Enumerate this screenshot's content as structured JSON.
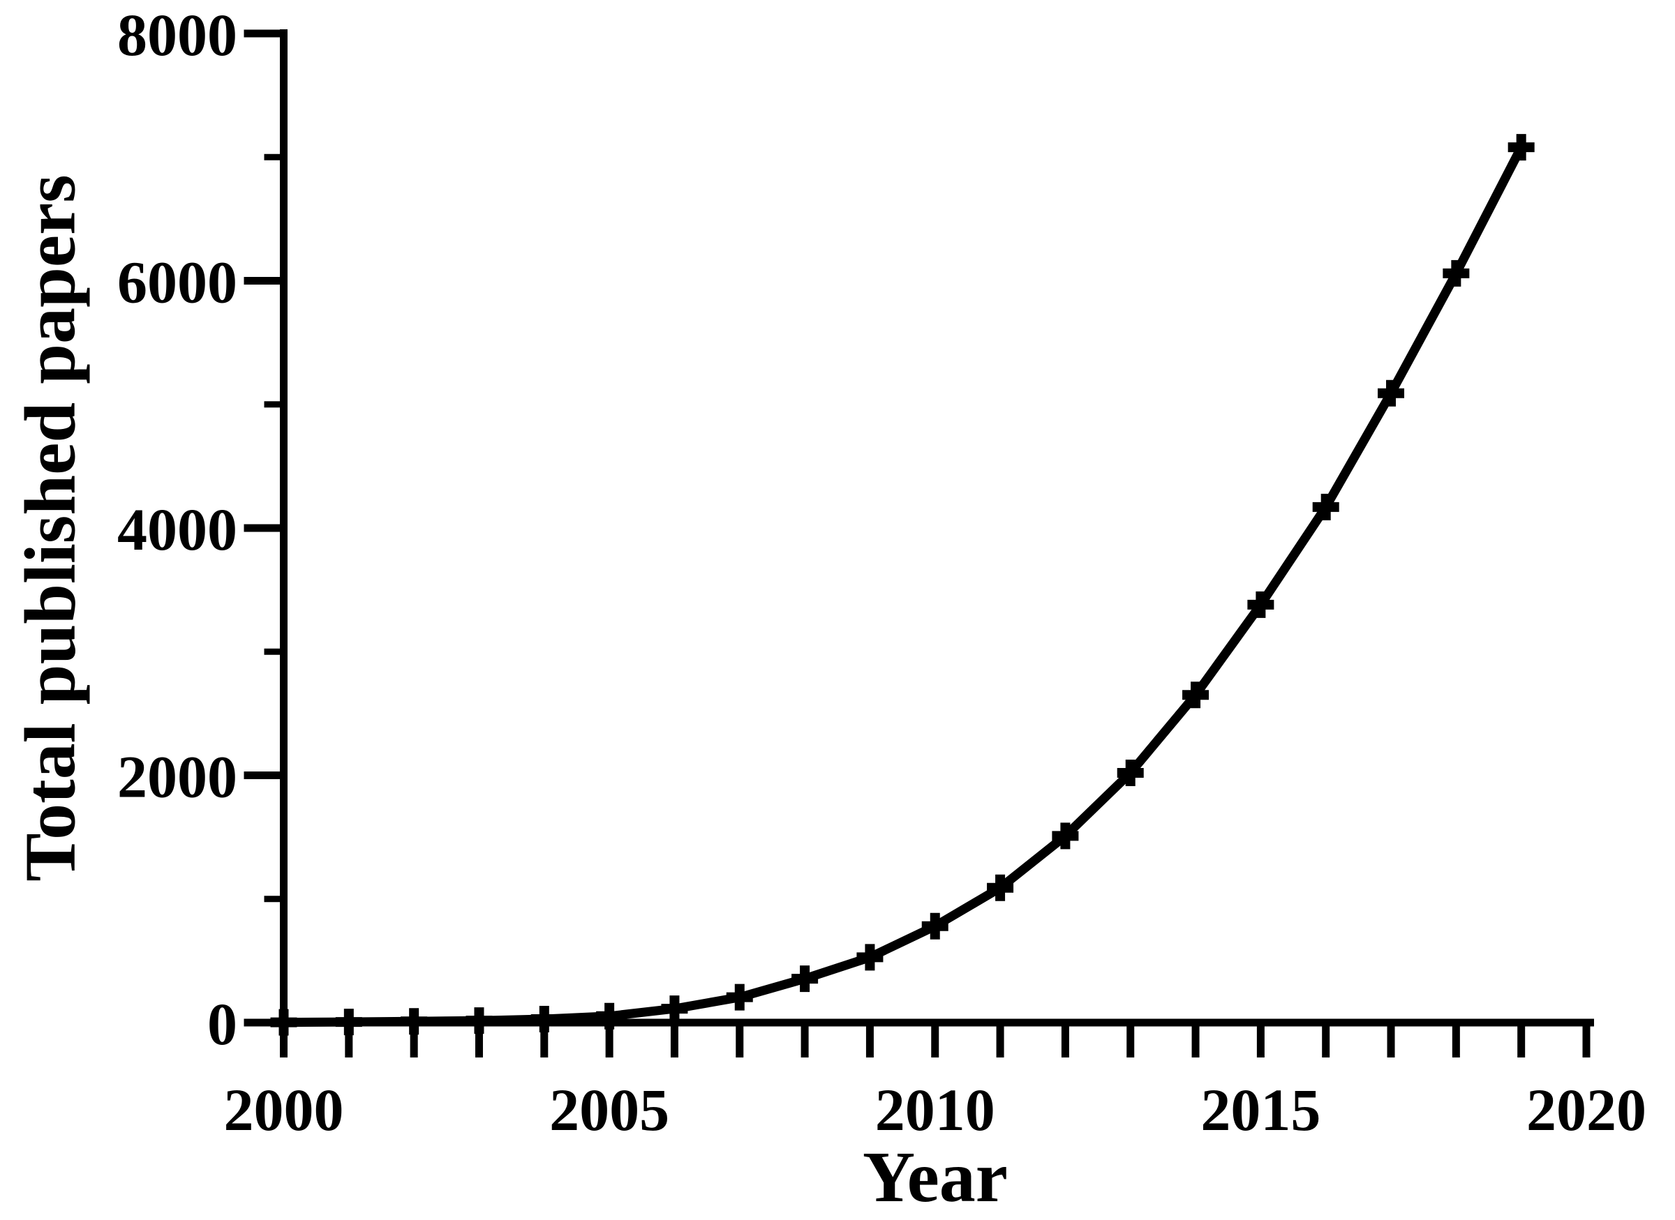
{
  "figure": {
    "background": "#ffffff",
    "ink_color": "#000000"
  },
  "chart_data": {
    "type": "line",
    "title": "",
    "xlabel": "Year",
    "ylabel": "Total published papers",
    "x": [
      2000,
      2001,
      2002,
      2003,
      2004,
      2005,
      2006,
      2007,
      2008,
      2009,
      2010,
      2011,
      2012,
      2013,
      2014,
      2015,
      2016,
      2017,
      2018,
      2019
    ],
    "series": [
      {
        "name": "Total published papers",
        "values": [
          2,
          5,
          10,
          16,
          28,
          52,
          112,
          205,
          355,
          528,
          780,
          1090,
          1510,
          2020,
          2650,
          3380,
          4170,
          5090,
          6060,
          7080
        ]
      }
    ],
    "xlim": [
      2000,
      2020
    ],
    "ylim": [
      0,
      8000
    ],
    "x_major_ticks": [
      2000,
      2005,
      2010,
      2015,
      2020
    ],
    "x_minor_tick_step": 1,
    "y_major_ticks": [
      0,
      2000,
      4000,
      6000,
      8000
    ],
    "y_minor_ticks": [
      1000,
      3000,
      5000,
      7000
    ],
    "grid": false,
    "legend": "none",
    "marker": "plus",
    "line_color": "#000000",
    "background": "#ffffff"
  }
}
